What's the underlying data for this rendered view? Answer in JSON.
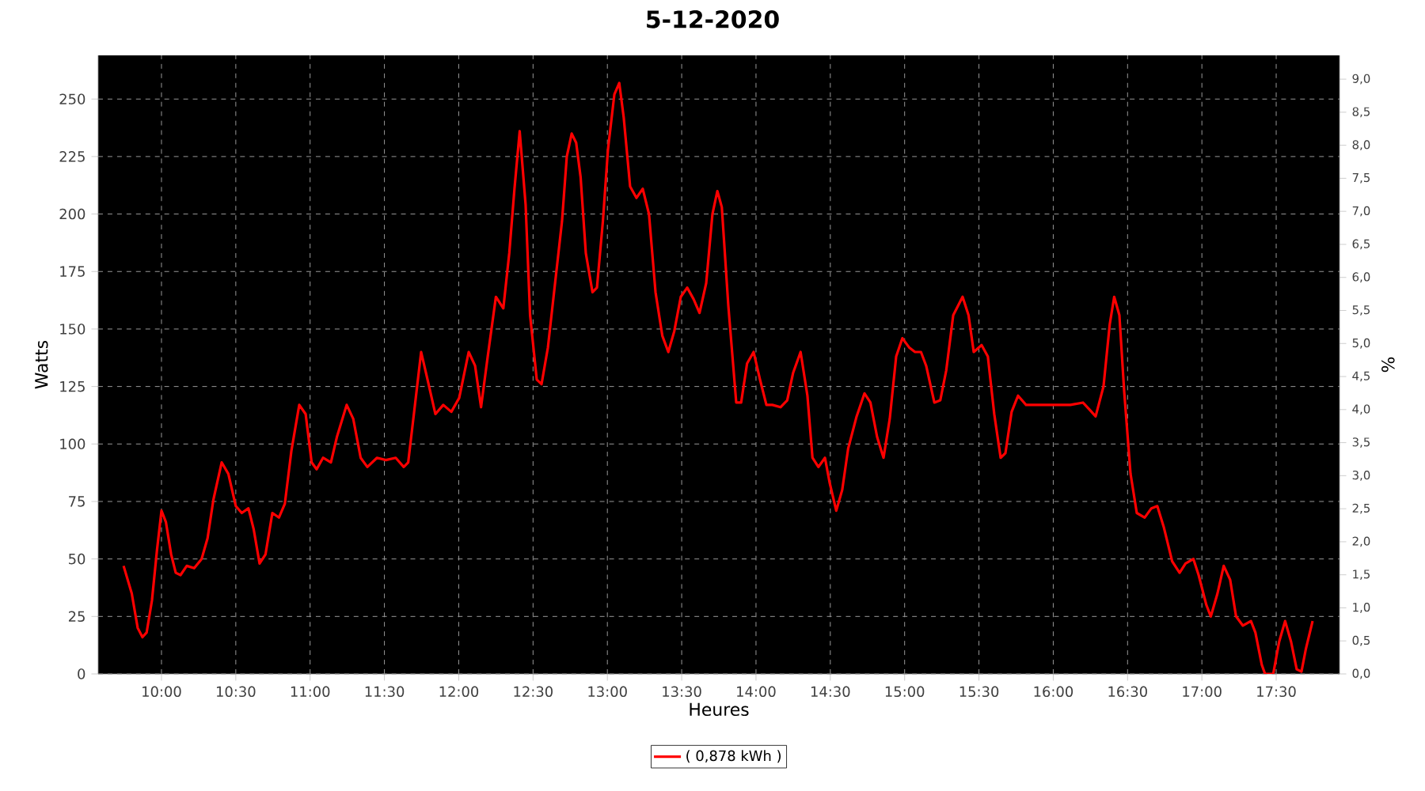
{
  "chart_data": {
    "type": "line",
    "title": "5-12-2020",
    "xlabel": "Heures",
    "ylabel": "Watts",
    "y2label": "%",
    "xlim": [
      9.574,
      17.926
    ],
    "ylim": [
      0,
      269
    ],
    "y2lim": [
      0,
      9.36
    ],
    "xticks": [
      {
        "value": 10,
        "label": "10:00"
      },
      {
        "value": 10.5,
        "label": "10:30"
      },
      {
        "value": 11,
        "label": "11:00"
      },
      {
        "value": 11.5,
        "label": "11:30"
      },
      {
        "value": 12,
        "label": "12:00"
      },
      {
        "value": 12.5,
        "label": "12:30"
      },
      {
        "value": 13,
        "label": "13:00"
      },
      {
        "value": 13.5,
        "label": "13:30"
      },
      {
        "value": 14,
        "label": "14:00"
      },
      {
        "value": 14.5,
        "label": "14:30"
      },
      {
        "value": 15,
        "label": "15:00"
      },
      {
        "value": 15.5,
        "label": "15:30"
      },
      {
        "value": 16,
        "label": "16:00"
      },
      {
        "value": 16.5,
        "label": "16:30"
      },
      {
        "value": 17,
        "label": "17:00"
      },
      {
        "value": 17.5,
        "label": "17:30"
      }
    ],
    "yticks": [
      0,
      25,
      50,
      75,
      100,
      125,
      150,
      175,
      200,
      225,
      250
    ],
    "y2ticks": [
      {
        "value": 0,
        "label": "0,0"
      },
      {
        "value": 0.5,
        "label": "0,5"
      },
      {
        "value": 1,
        "label": "1,0"
      },
      {
        "value": 1.5,
        "label": "1,5"
      },
      {
        "value": 2,
        "label": "2,0"
      },
      {
        "value": 2.5,
        "label": "2,5"
      },
      {
        "value": 3,
        "label": "3,0"
      },
      {
        "value": 3.5,
        "label": "3,5"
      },
      {
        "value": 4,
        "label": "4,0"
      },
      {
        "value": 4.5,
        "label": "4,5"
      },
      {
        "value": 5,
        "label": "5,0"
      },
      {
        "value": 5.5,
        "label": "5,5"
      },
      {
        "value": 6,
        "label": "6,0"
      },
      {
        "value": 6.5,
        "label": "6,5"
      },
      {
        "value": 7,
        "label": "7,0"
      },
      {
        "value": 7.5,
        "label": "7,5"
      },
      {
        "value": 8,
        "label": "8,0"
      },
      {
        "value": 8.5,
        "label": "8,5"
      },
      {
        "value": 9,
        "label": "9,0"
      }
    ],
    "grid": true,
    "legend": "bottom",
    "marker": "none",
    "line_style": "solid",
    "series": [
      {
        "name": "( 0,878 kWh )",
        "color": "#ff0000",
        "x": [
          9.745,
          9.8,
          9.84,
          9.872,
          9.9,
          9.936,
          9.97,
          10.0,
          10.03,
          10.065,
          10.096,
          10.128,
          10.17,
          10.22,
          10.27,
          10.31,
          10.35,
          10.405,
          10.45,
          10.5,
          10.54,
          10.585,
          10.62,
          10.66,
          10.7,
          10.746,
          10.79,
          10.83,
          10.874,
          10.927,
          10.97,
          11.01,
          11.044,
          11.087,
          11.14,
          11.18,
          11.246,
          11.29,
          11.34,
          11.385,
          11.45,
          11.51,
          11.576,
          11.63,
          11.66,
          11.7,
          11.747,
          11.79,
          11.843,
          11.896,
          11.95,
          12.003,
          12.067,
          12.11,
          12.15,
          12.195,
          12.25,
          12.3,
          12.34,
          12.375,
          12.41,
          12.45,
          12.48,
          12.525,
          12.557,
          12.6,
          12.65,
          12.695,
          12.727,
          12.76,
          12.79,
          12.82,
          12.855,
          12.9,
          12.93,
          12.97,
          13.004,
          13.047,
          13.08,
          13.11,
          13.153,
          13.196,
          13.238,
          13.28,
          13.324,
          13.37,
          13.41,
          13.45,
          13.494,
          13.537,
          13.58,
          13.62,
          13.665,
          13.707,
          13.74,
          13.77,
          13.814,
          13.867,
          13.9,
          13.94,
          13.984,
          14.027,
          14.07,
          14.11,
          14.165,
          14.21,
          14.25,
          14.3,
          14.346,
          14.38,
          14.42,
          14.464,
          14.496,
          14.54,
          14.58,
          14.62,
          14.677,
          14.73,
          14.77,
          14.815,
          14.858,
          14.9,
          14.943,
          14.985,
          15.03,
          15.07,
          15.11,
          15.145,
          15.2,
          15.24,
          15.28,
          15.327,
          15.39,
          15.43,
          15.465,
          15.518,
          15.56,
          15.603,
          15.646,
          15.678,
          15.72,
          15.763,
          15.817,
          15.87,
          15.998,
          16.115,
          16.2,
          16.243,
          16.285,
          16.338,
          16.38,
          16.41,
          16.445,
          16.477,
          16.52,
          16.562,
          16.615,
          16.66,
          16.7,
          16.743,
          16.8,
          16.85,
          16.89,
          16.943,
          16.978,
          17.03,
          17.06,
          17.105,
          17.147,
          17.19,
          17.23,
          17.276,
          17.33,
          17.36,
          17.403,
          17.425,
          17.48,
          17.52,
          17.56,
          17.6,
          17.638,
          17.67,
          17.7,
          17.745
        ],
        "values": [
          47,
          35,
          20,
          16,
          18,
          32,
          54,
          71,
          66,
          52,
          44,
          43,
          47,
          46,
          50,
          59,
          76,
          92,
          87,
          73,
          70,
          72,
          63,
          48,
          52,
          70,
          68,
          74,
          97,
          117,
          113,
          92,
          89,
          94,
          92,
          103,
          117,
          111,
          94,
          90,
          94,
          93,
          94,
          90,
          92,
          114,
          140,
          128,
          113,
          117,
          114,
          120,
          140,
          134,
          116,
          138,
          164,
          159,
          183,
          211,
          236,
          204,
          156,
          128,
          126,
          142,
          171,
          197,
          225,
          235,
          231,
          216,
          183,
          166,
          168,
          197,
          228,
          252,
          257,
          242,
          212,
          207,
          211,
          200,
          166,
          147,
          140,
          149,
          164,
          168,
          163,
          157,
          170,
          200,
          210,
          203,
          160,
          118,
          118,
          135,
          140,
          128,
          117,
          117,
          116,
          119,
          131,
          140,
          121,
          94,
          90,
          94,
          83,
          71,
          80,
          98,
          112,
          122,
          118,
          103,
          94,
          111,
          138,
          146,
          142,
          140,
          140,
          134,
          118,
          119,
          132,
          156,
          164,
          156,
          140,
          143,
          138,
          113,
          94,
          96,
          114,
          121,
          117,
          117,
          117,
          117,
          118,
          115,
          112,
          125,
          152,
          164,
          156,
          123,
          87,
          70,
          68,
          72,
          73,
          64,
          49,
          44,
          48,
          50,
          43,
          30,
          25,
          35,
          47,
          41,
          25,
          21,
          23,
          18,
          4,
          0,
          0,
          14,
          23,
          14,
          2,
          1,
          11,
          23
        ]
      }
    ]
  }
}
